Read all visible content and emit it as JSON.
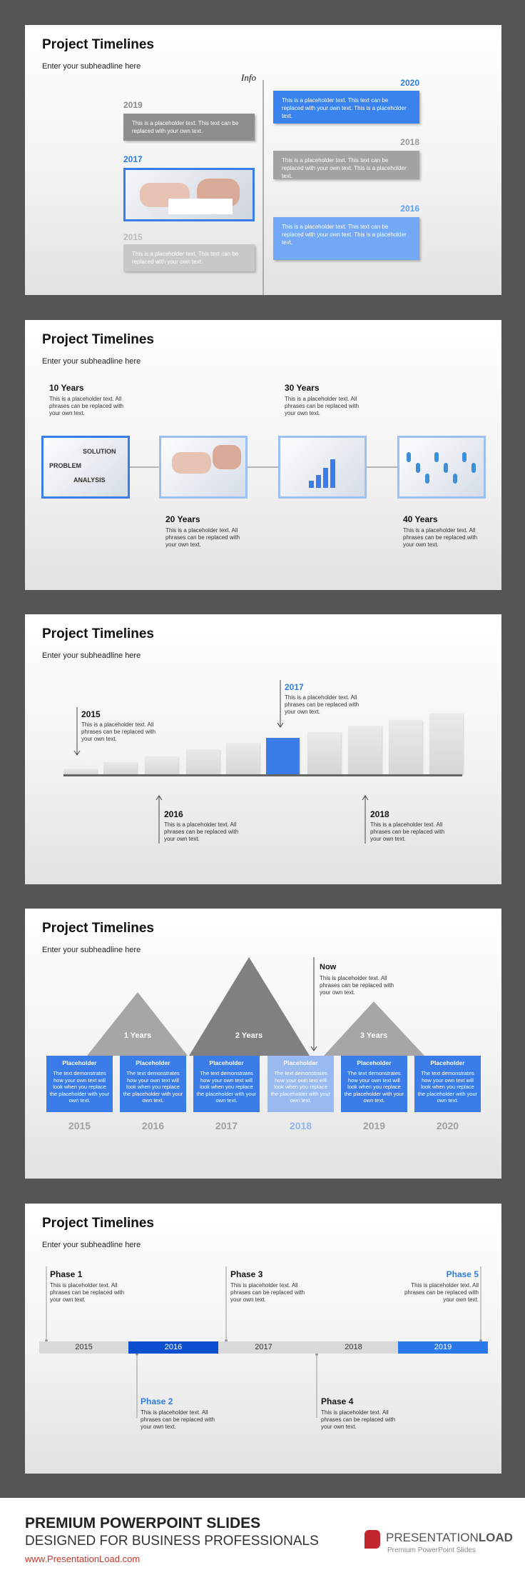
{
  "slides": [
    {
      "title": "Project Timelines",
      "subtitle": "Enter your subheadline here",
      "info": "Info",
      "entries": [
        {
          "year": "2020",
          "text": "This is a placeholder text. This text can be replaced with your own text. This is a placeholder text."
        },
        {
          "year": "2019",
          "text": "This is a placeholder text. This text can be replaced with your own text."
        },
        {
          "year": "2018",
          "text": "This is a placeholder text. This text can be replaced with your own text. This is a placeholder text."
        },
        {
          "year": "2017"
        },
        {
          "year": "2016",
          "text": "This is a placeholder text. This text can be replaced with your own text. This is a placeholder text."
        },
        {
          "year": "2015",
          "text": "This is a placeholder text. This text can be replaced with your own text."
        }
      ]
    },
    {
      "title": "Project Timelines",
      "subtitle": "Enter your subheadline here",
      "milestones": [
        {
          "label": "10 Years",
          "text": "This is a placeholder text. All phrases can be replaced with your own text."
        },
        {
          "label": "20 Years",
          "text": "This is a placeholder text. All phrases can be replaced with your own text."
        },
        {
          "label": "30 Years",
          "text": "This is a placeholder text. All phrases can be replaced with your own text."
        },
        {
          "label": "40 Years",
          "text": "This is a placeholder text. All phrases can be replaced with your own text."
        }
      ],
      "image_words": [
        "SOLUTION",
        "PROBLEM",
        "ANALYSIS"
      ]
    },
    {
      "title": "Project Timelines",
      "subtitle": "Enter your subheadline here",
      "markers": [
        {
          "year": "2015",
          "text": "This is a placeholder text. All phrases can be replaced with your own text."
        },
        {
          "year": "2017",
          "text": "This is a placeholder text. All phrases can be replaced with your own text."
        },
        {
          "year": "2016",
          "text": "This is a placeholder text. All phrases can be replaced with your own text."
        },
        {
          "year": "2018",
          "text": "This is a placeholder text. All phrases can be replaced with your own text."
        }
      ]
    },
    {
      "title": "Project Timelines",
      "subtitle": "Enter your subheadline here",
      "now": {
        "label": "Now",
        "text": "This is placeholder text. All phrases can be replaced with your own text."
      },
      "spans": [
        "1 Years",
        "2 Years",
        "3 Years"
      ],
      "boxes": [
        {
          "title": "Placeholder",
          "text": "The text demonstrates how your own text will look when you replace the placeholder with your own text.",
          "year": "2015"
        },
        {
          "title": "Placeholder",
          "text": "The text demonstrates how your own text will look when you replace the placeholder with your own text.",
          "year": "2016"
        },
        {
          "title": "Placeholder",
          "text": "The text demonstrates how your own text will look when you replace the placeholder with your own text.",
          "year": "2017"
        },
        {
          "title": "Placeholder",
          "text": "The text demonstrates how your own text will look when you replace the placeholder with your own text.",
          "year": "2018"
        },
        {
          "title": "Placeholder",
          "text": "The text demonstrates how your own text will look when you replace the placeholder with your own text.",
          "year": "2019"
        },
        {
          "title": "Placeholder",
          "text": "The text demonstrates how your own text will look when you replace the placeholder with your own text.",
          "year": "2020"
        }
      ]
    },
    {
      "title": "Project Timelines",
      "subtitle": "Enter your subheadline here",
      "phases": [
        {
          "label": "Phase 1",
          "text": "This is placeholder text. All phrases can be replaced with your own text."
        },
        {
          "label": "Phase 2",
          "text": "This is placeholder text. All phrases can be replaced with your own text."
        },
        {
          "label": "Phase 3",
          "text": "This is placeholder text. All phrases can be replaced with your own text."
        },
        {
          "label": "Phase 4",
          "text": "This is placeholder text. All phrases can be replaced with your own text."
        },
        {
          "label": "Phase 5",
          "text": "This is placeholder text. All phrases can be replaced with your own text."
        }
      ],
      "years": [
        "2015",
        "2016",
        "2017",
        "2018",
        "2019"
      ]
    }
  ],
  "footer": {
    "headline": "PREMIUM POWERPOINT SLIDES",
    "subline": "DESIGNED FOR BUSINESS PROFESSIONALS",
    "url": "www.PresentationLoad.com",
    "brand_a": "PRESENTATION",
    "brand_b": "LOAD",
    "tagline": "Premium PowerPoint Slides"
  }
}
